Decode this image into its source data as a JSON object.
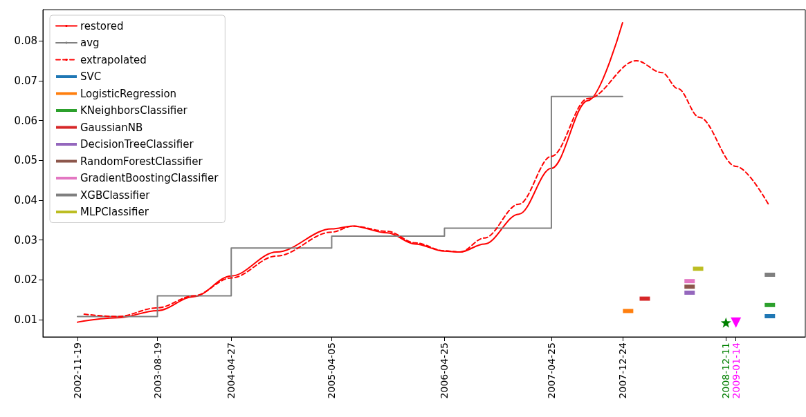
{
  "chart_data": {
    "type": "line",
    "xlim": [
      "2002-07-24",
      "2009-09-08"
    ],
    "ylim": [
      0.0057,
      0.0878
    ],
    "xticks": [
      "2002-11-19",
      "2003-08-19",
      "2004-04-27",
      "2005-04-05",
      "2006-04-25",
      "2007-04-25",
      "2007-12-24",
      "2008-12-11",
      "2009-01-14"
    ],
    "yticks": [
      0.01,
      0.02,
      0.03,
      0.04,
      0.05,
      0.06,
      0.07,
      0.08
    ],
    "grid": false,
    "legend": "top left",
    "series": [
      {
        "name": "restored",
        "color": "#ff0000",
        "line_style": "solid",
        "x": [
          "2002-11-19",
          "2003-04-05",
          "2003-08-19",
          "2003-12-21",
          "2004-04-27",
          "2004-09-29",
          "2005-04-05",
          "2005-06-16",
          "2005-10-12",
          "2006-01-15",
          "2006-04-25",
          "2006-06-17",
          "2006-09-08",
          "2007-01-04",
          "2007-04-25",
          "2007-08-28",
          "2007-12-24"
        ],
        "values": [
          0.0094,
          0.0105,
          0.0123,
          0.0158,
          0.021,
          0.027,
          0.0328,
          0.0335,
          0.0318,
          0.029,
          0.0272,
          0.027,
          0.029,
          0.0365,
          0.048,
          0.065,
          0.0845
        ]
      },
      {
        "name": "avg",
        "type": "step",
        "color": "#808080",
        "line_style": "solid",
        "x": [
          "2002-11-19",
          "2003-08-19",
          "2004-04-27",
          "2005-04-05",
          "2006-04-25",
          "2007-04-25",
          "2007-12-24"
        ],
        "values": [
          0.0108,
          0.016,
          0.028,
          0.031,
          0.033,
          0.066,
          0.066
        ]
      },
      {
        "name": "extrapolated",
        "color": "#ff0000",
        "line_style": "dashed",
        "x": [
          "2002-12-12",
          "2003-04-05",
          "2003-08-19",
          "2003-12-21",
          "2004-04-27",
          "2004-09-29",
          "2005-04-05",
          "2005-06-16",
          "2005-10-12",
          "2006-01-15",
          "2006-04-25",
          "2006-06-17",
          "2006-09-08",
          "2007-01-04",
          "2007-04-25",
          "2007-08-28",
          "2008-02-09",
          "2008-05-07",
          "2008-06-30",
          "2008-09-11",
          "2009-01-14",
          "2009-05-04"
        ],
        "values": [
          0.0114,
          0.0108,
          0.013,
          0.016,
          0.0205,
          0.026,
          0.032,
          0.0335,
          0.0322,
          0.0293,
          0.0273,
          0.027,
          0.0305,
          0.039,
          0.051,
          0.0655,
          0.075,
          0.072,
          0.068,
          0.0608,
          0.0485,
          0.0391
        ]
      },
      {
        "name": "SVC",
        "type": "scatter",
        "color": "#1f77b4",
        "x": [
          "2009-05-10"
        ],
        "values": [
          0.0109
        ]
      },
      {
        "name": "LogisticRegression",
        "type": "scatter",
        "color": "#ff7f0e",
        "x": [
          "2008-01-12"
        ],
        "values": [
          0.0122
        ]
      },
      {
        "name": "KNeighborsClassifier",
        "type": "scatter",
        "color": "#2ca02c",
        "x": [
          "2009-05-10"
        ],
        "values": [
          0.0137
        ]
      },
      {
        "name": "GaussianNB",
        "type": "scatter",
        "color": "#d62728",
        "x": [
          "2008-03-09"
        ],
        "values": [
          0.0153
        ]
      },
      {
        "name": "DecisionTreeClassifier",
        "type": "scatter",
        "color": "#9467bd",
        "x": [
          "2008-08-09"
        ],
        "values": [
          0.0168
        ]
      },
      {
        "name": "RandomForestClassifier",
        "type": "scatter",
        "color": "#8c564b",
        "x": [
          "2008-08-09"
        ],
        "values": [
          0.0183
        ]
      },
      {
        "name": "GradientBoostingClassifier",
        "type": "scatter",
        "color": "#e377c2",
        "x": [
          "2008-08-09"
        ],
        "values": [
          0.0197
        ]
      },
      {
        "name": "XGBClassifier",
        "type": "scatter",
        "color": "#7f7f7f",
        "x": [
          "2009-05-10"
        ],
        "values": [
          0.0213
        ]
      },
      {
        "name": "MLPClassifier",
        "type": "scatter",
        "color": "#bcbd22",
        "x": [
          "2008-09-07"
        ],
        "values": [
          0.0228
        ]
      },
      {
        "type": "scatter",
        "color": "#008000",
        "marker": "star",
        "x": [
          "2008-12-11"
        ],
        "values": [
          0.0093
        ]
      },
      {
        "type": "scatter",
        "color": "#ff00ff",
        "marker": "triangle",
        "x": [
          "2009-01-14"
        ],
        "values": [
          0.0093
        ]
      }
    ]
  }
}
